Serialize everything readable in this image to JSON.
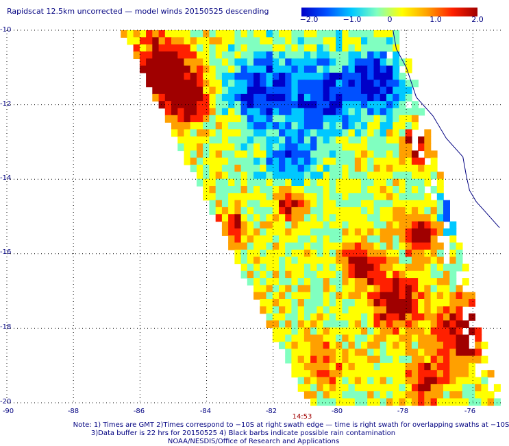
{
  "title": "Rapidscat 12.5km uncorrected — model winds 20150525 descending",
  "colorbar": {
    "ticks": [
      "−2.0",
      "−1.0",
      "0",
      "1.0",
      "2.0"
    ],
    "tick_values": [
      -2.0,
      -1.0,
      0,
      1.0,
      2.0
    ],
    "colors": [
      "#0000c8",
      "#0050ff",
      "#00c8ff",
      "#80ffc0",
      "#ffff00",
      "#ffa000",
      "#ff2000",
      "#a00000"
    ]
  },
  "chart_data": {
    "type": "heatmap",
    "x_ticks": [
      "-90",
      "-88",
      "-86",
      "-84",
      "-82",
      "-80",
      "-78",
      "-76"
    ],
    "x_tick_values": [
      -90,
      -88,
      -86,
      -84,
      -82,
      -80,
      -78,
      -76
    ],
    "y_ticks": [
      "-10",
      "-12",
      "-14",
      "-16",
      "-18",
      "-20"
    ],
    "y_tick_values": [
      -10,
      -12,
      -14,
      -16,
      -18,
      -20
    ],
    "xlim": [
      -90,
      -75.1
    ],
    "ylim": [
      -20,
      -10
    ],
    "grid": true,
    "value_range": [
      -2.0,
      2.0
    ]
  },
  "time_label": "14:53",
  "notes": [
    "Note: 1) Times are GMT 2)Times correspond to −10S at right swath edge — time is right swath for overlapping swaths at −10S",
    "3)Data buffer is 22 hrs for 20150525 4) Black barbs indicate possible rain contamination",
    "NOAA/NESDIS/Office of Research and Applications"
  ],
  "colors": {
    "text": "#000080",
    "time": "#a00000",
    "coast": "#000080",
    "grid": "#000000"
  }
}
